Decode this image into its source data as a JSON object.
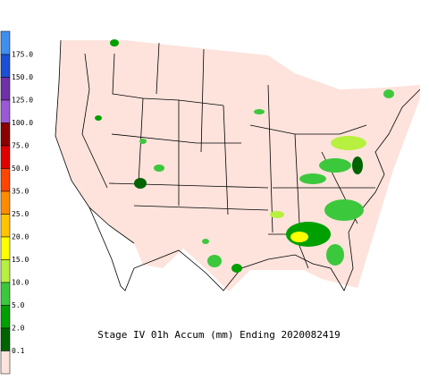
{
  "legend": {
    "labels": [
      "175.0",
      "150.0",
      "125.0",
      "100.0",
      "75.0",
      "50.0",
      "35.0",
      "25.0",
      "20.0",
      "15.0",
      "10.0",
      "5.0",
      "2.0",
      "0.1"
    ],
    "colors": [
      "#3f8ff0",
      "#1b4fd6",
      "#7030a8",
      "#9b59d6",
      "#8b0000",
      "#e00000",
      "#ff4500",
      "#ff8c00",
      "#ffc400",
      "#ffff00",
      "#b8f040",
      "#3cc83c",
      "#00a000",
      "#006400",
      "#fde3dc"
    ]
  },
  "caption": "Stage IV 01h Accum (mm) Ending 2020082419"
}
